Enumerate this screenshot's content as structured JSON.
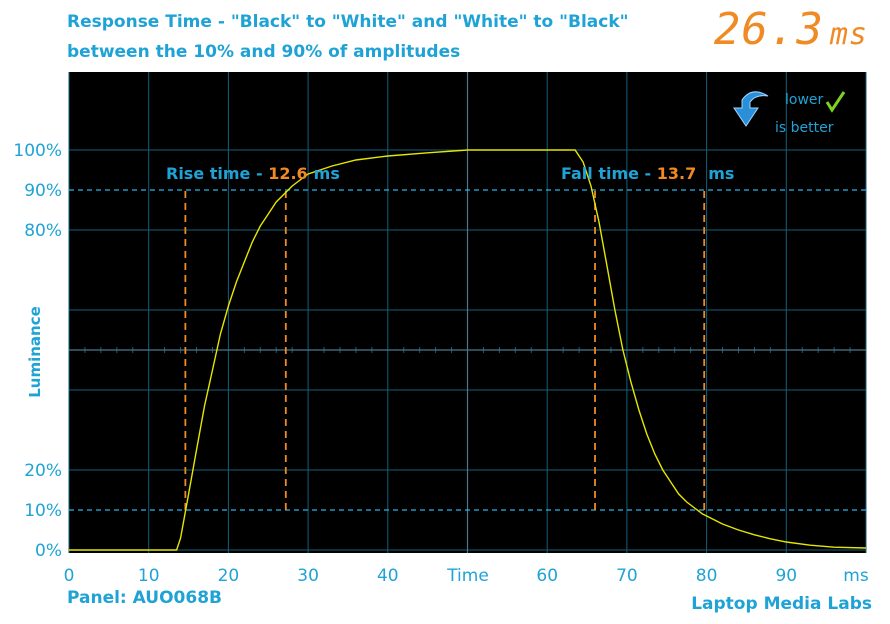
{
  "header": {
    "title_line1": "Response Time - \"Black\" to \"White\" and \"White\" to \"Black\"",
    "title_line2": "between the 10% and 90% of amplitudes",
    "headline_value": "26.3",
    "headline_unit": "ms"
  },
  "footer": {
    "panel": "Panel: AUO068B",
    "brand": "Laptop Media Labs"
  },
  "badge": {
    "line1": "lower",
    "line2": "is better",
    "icon": "down-arrow-icon",
    "check_icon": "checkmark-icon"
  },
  "colors": {
    "background": "#000000",
    "accent_blue": "#1fa3d6",
    "orange": "#f08a24",
    "trace": "#e6e600",
    "grid": "#14607c"
  },
  "chart_data": {
    "type": "line",
    "ylabel": "Luminance",
    "xlabel": "Time",
    "x_unit_label": "ms",
    "xlim": [
      0,
      100
    ],
    "ylim": [
      0,
      100
    ],
    "x_ticks": [
      0,
      10,
      20,
      30,
      40,
      60,
      70,
      80,
      90
    ],
    "y_ticks": [
      {
        "value": 0,
        "label": "0%"
      },
      {
        "value": 10,
        "label": "10%"
      },
      {
        "value": 20,
        "label": "20%"
      },
      {
        "value": 80,
        "label": "80%"
      },
      {
        "value": 90,
        "label": "90%"
      },
      {
        "value": 100,
        "label": "100%"
      }
    ],
    "threshold_lines": [
      10,
      90
    ],
    "grid": true,
    "series": [
      {
        "x": [
          0,
          13.5,
          14,
          15,
          16,
          17,
          18,
          19,
          20,
          21,
          22,
          23,
          24,
          25,
          26,
          27,
          28,
          30,
          33,
          36,
          40,
          45,
          50,
          55,
          60,
          63.5,
          64.5,
          65.5,
          66.5,
          67.5,
          68.5,
          69.5,
          70.5,
          71.5,
          72.5,
          73.5,
          74.5,
          75.5,
          76.5,
          77.5,
          78.5,
          79.5,
          80.5,
          82,
          84,
          86,
          88,
          90,
          93,
          96,
          100
        ],
        "y": [
          0,
          0,
          3,
          14,
          25,
          36,
          45,
          54,
          61,
          67,
          72,
          77,
          81,
          84,
          87,
          89,
          91,
          94,
          96,
          97.5,
          98.5,
          99.3,
          100,
          100,
          100,
          100,
          97,
          91,
          82,
          71,
          60,
          50,
          42,
          35,
          29,
          24,
          20,
          17,
          14,
          12,
          10.5,
          9,
          8,
          6.5,
          5,
          3.8,
          2.8,
          2,
          1.2,
          0.7,
          0.5
        ]
      }
    ],
    "annotations": [
      {
        "label": "Rise time - ",
        "value": "12.6",
        "unit": "ms",
        "start": 14.6,
        "end": 27.2
      },
      {
        "label": "Fall time - ",
        "value": "13.7",
        "unit": "ms",
        "start": 66.0,
        "end": 79.7
      }
    ]
  }
}
